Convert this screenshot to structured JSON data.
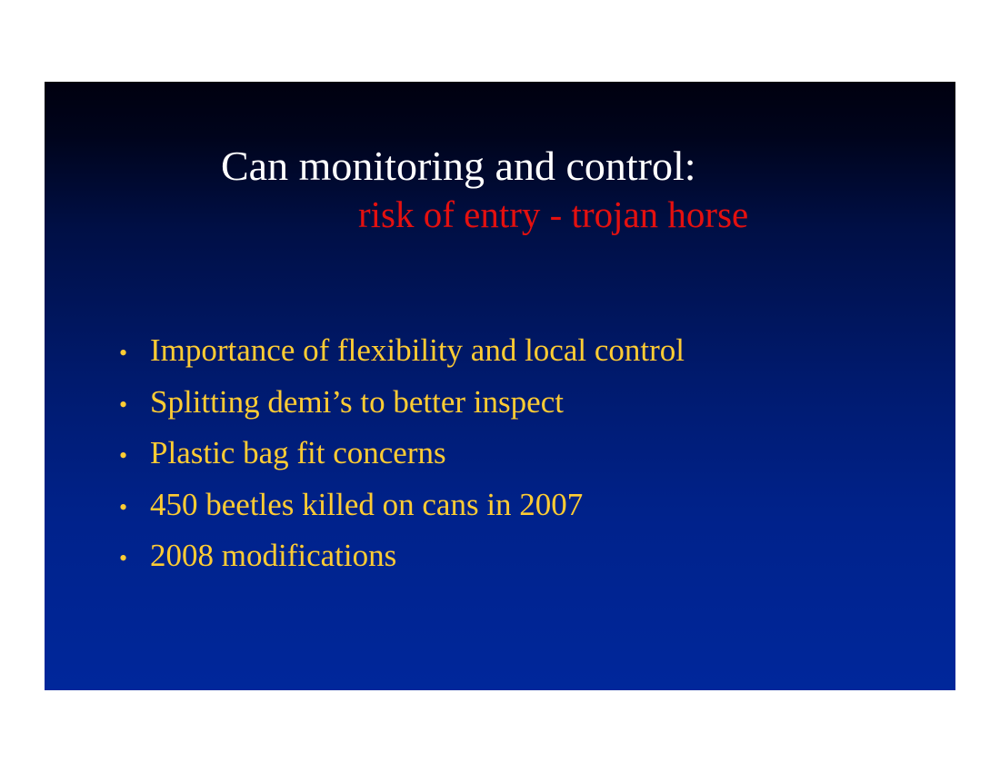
{
  "slide": {
    "title": "Can monitoring and control:",
    "subtitle": "risk of entry - trojan horse",
    "bullets": [
      "Importance of flexibility and local control",
      "Splitting demi’s to better inspect",
      "Plastic bag fit concerns",
      "450 beetles killed on cans in 2007",
      "2008 modifications"
    ]
  },
  "colors": {
    "title": "#ffffff",
    "subtitle": "#e4100f",
    "bullet_text": "#ffcc33",
    "background_top": "#00000f",
    "background_bottom": "#00279b"
  }
}
